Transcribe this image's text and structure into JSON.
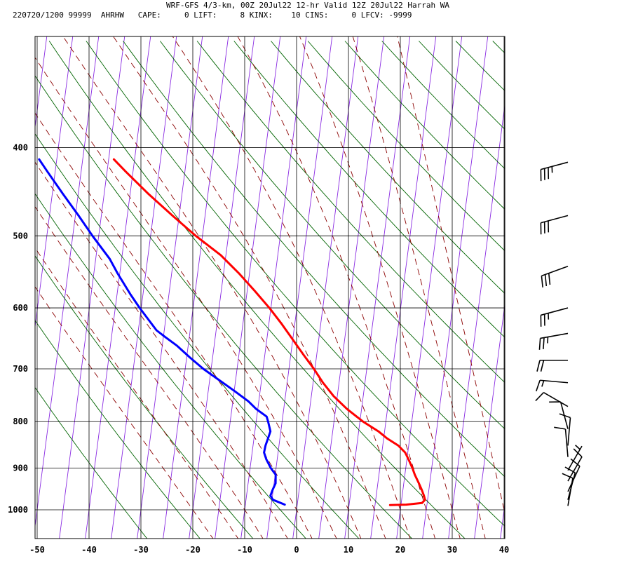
{
  "header": {
    "line1": "WRF-GFS 4/3-km, 00Z 20Jul22 12-hr Valid 12Z 20Jul22 Harrah WA",
    "line2": "220720/1200 99999  AHRHW   CAPE:     0 LIFT:     8 KINX:    10 CINS:     0 LFCV: -9999"
  },
  "colors": {
    "temperature": "#ff0000",
    "dewpoint": "#0000ff",
    "isotherm": "#8a2be2",
    "dry_adiabat": "#006400",
    "moist_adiabat": "#8b0000",
    "grid": "#000000",
    "barb": "#000000"
  },
  "chart_data": {
    "type": "line",
    "subtype": "skew-t sounding",
    "x_axis": {
      "min": -50,
      "max": 40,
      "ticks": [
        -50,
        -40,
        -30,
        -20,
        -10,
        0,
        10,
        20,
        30,
        40
      ]
    },
    "y_axis": {
      "scale": "log-pressure",
      "top": 400,
      "bottom": 1040,
      "ticks": [
        400,
        500,
        600,
        700,
        800,
        900,
        1000
      ]
    },
    "grid": true,
    "series": [
      {
        "id": "temperature",
        "p": [
          988,
          987,
          983,
          975,
          965,
          950,
          935,
          915,
          900,
          880,
          865,
          850,
          835,
          820,
          800,
          775,
          750,
          725,
          700,
          675,
          650,
          625,
          600,
          575,
          550,
          525,
          500,
          475,
          450,
          425,
          412
        ],
        "t": [
          17.9,
          21.0,
          24.0,
          24.5,
          24.2,
          23.6,
          22.9,
          21.9,
          21.3,
          20.3,
          19.5,
          18.0,
          15.7,
          13.8,
          10.6,
          7.2,
          4.3,
          1.9,
          -0.2,
          -2.6,
          -5.0,
          -7.5,
          -10.3,
          -13.5,
          -17.0,
          -21.0,
          -26.3,
          -31.3,
          -36.4,
          -41.4,
          -44.0
        ]
      },
      {
        "id": "dewpoint",
        "p": [
          987,
          975,
          965,
          950,
          935,
          915,
          900,
          880,
          865,
          850,
          835,
          820,
          800,
          790,
          775,
          760,
          740,
          717,
          700,
          680,
          660,
          645,
          635,
          600,
          580,
          550,
          530,
          500,
          475,
          450,
          425,
          412
        ],
        "td": [
          -2.4,
          -4.8,
          -5.4,
          -5.1,
          -4.7,
          -4.9,
          -6.0,
          -7.1,
          -7.7,
          -7.6,
          -7.3,
          -7.0,
          -7.7,
          -8.1,
          -10.3,
          -12.0,
          -15.0,
          -18.7,
          -21.5,
          -24.4,
          -27.2,
          -29.8,
          -31.5,
          -35.3,
          -37.4,
          -40.4,
          -42.3,
          -46.2,
          -49.4,
          -52.9,
          -56.5,
          -58.4
        ]
      }
    ],
    "wind_barbs": [
      {
        "p": 415,
        "dir": 255,
        "spd": 35
      },
      {
        "p": 475,
        "dir": 255,
        "spd": 30
      },
      {
        "p": 540,
        "dir": 250,
        "spd": 30
      },
      {
        "p": 600,
        "dir": 255,
        "spd": 25
      },
      {
        "p": 640,
        "dir": 260,
        "spd": 25
      },
      {
        "p": 685,
        "dir": 270,
        "spd": 20
      },
      {
        "p": 725,
        "dir": 275,
        "spd": 15
      },
      {
        "p": 770,
        "dir": 300,
        "spd": 10
      },
      {
        "p": 815,
        "dir": 345,
        "spd": 10
      },
      {
        "p": 850,
        "dir": 5,
        "spd": 10
      },
      {
        "p": 875,
        "dir": 355,
        "spd": 10
      },
      {
        "p": 905,
        "dir": 30,
        "spd": 5
      },
      {
        "p": 930,
        "dir": 30,
        "spd": 10
      },
      {
        "p": 955,
        "dir": 25,
        "spd": 10
      },
      {
        "p": 975,
        "dir": 15,
        "spd": 10
      },
      {
        "p": 990,
        "dir": 10,
        "spd": 10
      }
    ]
  }
}
